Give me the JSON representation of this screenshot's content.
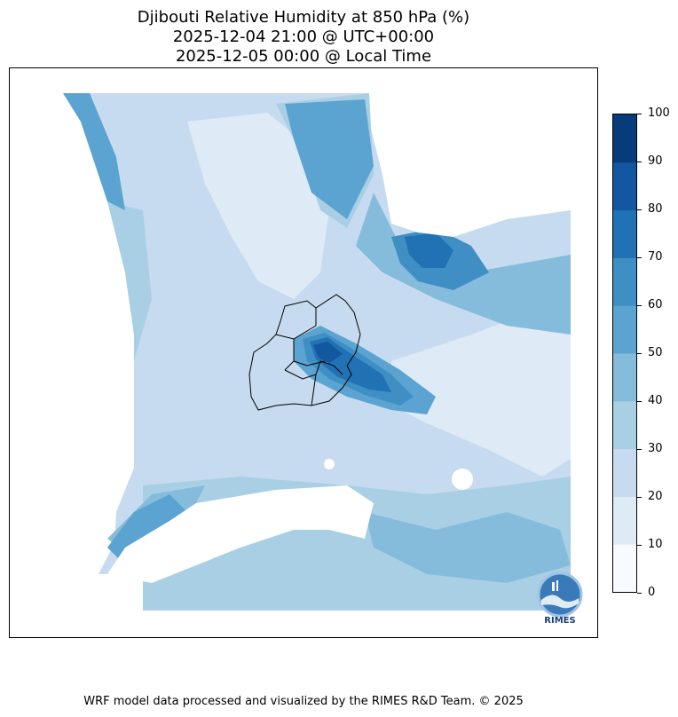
{
  "title": {
    "line1": "Djibouti Relative Humidity at 850 hPa (%)",
    "line2": "2025-12-04 21:00 @ UTC+00:00",
    "line3": "2025-12-05 00:00 @ Local Time"
  },
  "footer": "WRF model data processed and visualized by the RIMES R&D Team. © 2025",
  "logo_text": "RIMES",
  "chart_data": {
    "type": "heatmap",
    "title": "Djibouti Relative Humidity at 850 hPa (%)",
    "colorbar": {
      "ticks": [
        0,
        10,
        20,
        30,
        40,
        50,
        60,
        70,
        80,
        90,
        100
      ],
      "levels": [
        0,
        10,
        20,
        30,
        40,
        50,
        60,
        70,
        80,
        90,
        100
      ],
      "colors": [
        "#f7fbff",
        "#deebf7",
        "#c6dbef",
        "#a9cfe5",
        "#85bcdb",
        "#5ba3d0",
        "#3f8fc5",
        "#2171b5",
        "#1257a0",
        "#083b7a"
      ]
    },
    "field_description_levels": {
      "dominant_range": [
        20,
        50
      ],
      "max_band": [
        80,
        90
      ]
    }
  }
}
